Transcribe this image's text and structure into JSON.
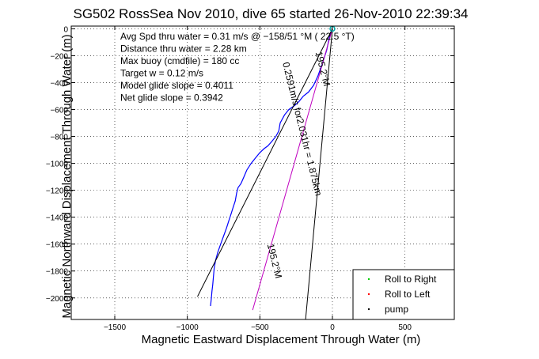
{
  "chart_data": {
    "type": "line",
    "title": "SG502 RossSea Nov 2010, dive 65 started 26-Nov-2010 22:39:34",
    "xlabel": "Magnetic Eastward Displacement Through Water (m)",
    "ylabel": "Magnetic Northward Displacement Through Water (m)",
    "xlim": [
      -1800,
      840
    ],
    "ylim": [
      -2160,
      20
    ],
    "xticks": [
      -1500,
      -1000,
      -500,
      0,
      500
    ],
    "yticks": [
      0,
      -200,
      -400,
      -600,
      -800,
      -1000,
      -1200,
      -1400,
      -1600,
      -1800,
      -2000
    ],
    "grid": true,
    "annotations": [
      "Avg Spd thru water =  0.31 m/s @ −158/51 °M ( 22.5 °T)",
      "Distance thru water = 2.28 km",
      "Max buoy (cmdfile) = 180 cc",
      "Target w = 0.12 m/s",
      "Model glide slope = 0.4011",
      "Net glide slope = 0.3942"
    ],
    "line_labels": [
      {
        "text": "0.2591m/s for2.031hr = 1.875km",
        "rotation": 76
      },
      {
        "text": "195.2°M",
        "rotation": 76
      },
      {
        "text": "195.2°M",
        "rotation": 76
      }
    ],
    "series": [
      {
        "name": "",
        "color": "#0000ff",
        "x": [
          0,
          -20,
          -40,
          -70,
          -100,
          -130,
          -165,
          -200,
          -230,
          -260,
          -300,
          -330,
          -360,
          -370,
          -390,
          -420,
          -445,
          -470,
          -500,
          -530,
          -560,
          -590,
          -610,
          -630,
          -650,
          -660,
          -670,
          -685,
          -700,
          -715,
          -730,
          -750,
          -770,
          -790,
          -805,
          -815,
          -820,
          -825,
          -830,
          -835,
          -840
        ],
        "y": [
          0,
          -60,
          -160,
          -260,
          -350,
          -420,
          -470,
          -500,
          -540,
          -570,
          -600,
          -640,
          -700,
          -760,
          -800,
          -840,
          -870,
          -890,
          -920,
          -960,
          -1000,
          -1050,
          -1100,
          -1150,
          -1180,
          -1220,
          -1280,
          -1330,
          -1380,
          -1430,
          -1480,
          -1540,
          -1600,
          -1660,
          -1720,
          -1780,
          -1840,
          -1900,
          -1950,
          -2010,
          -2060
        ]
      },
      {
        "name": "",
        "color": "#c000c0",
        "x": [
          0,
          -550
        ],
        "y": [
          0,
          -2090
        ]
      },
      {
        "name": "",
        "color": "#000000",
        "x": [
          0,
          -930
        ],
        "y": [
          0,
          -1990
        ]
      },
      {
        "name": "",
        "color": "#000000",
        "x": [
          0,
          -185
        ],
        "y": [
          0,
          -2160
        ]
      }
    ],
    "legend": {
      "placement": "bottom-right",
      "entries": [
        {
          "label": "Roll to Right",
          "color": "#00cc00"
        },
        {
          "label": "Roll to Left",
          "color": "#ff0000"
        },
        {
          "label": "pump",
          "color": "#000000"
        }
      ]
    }
  }
}
